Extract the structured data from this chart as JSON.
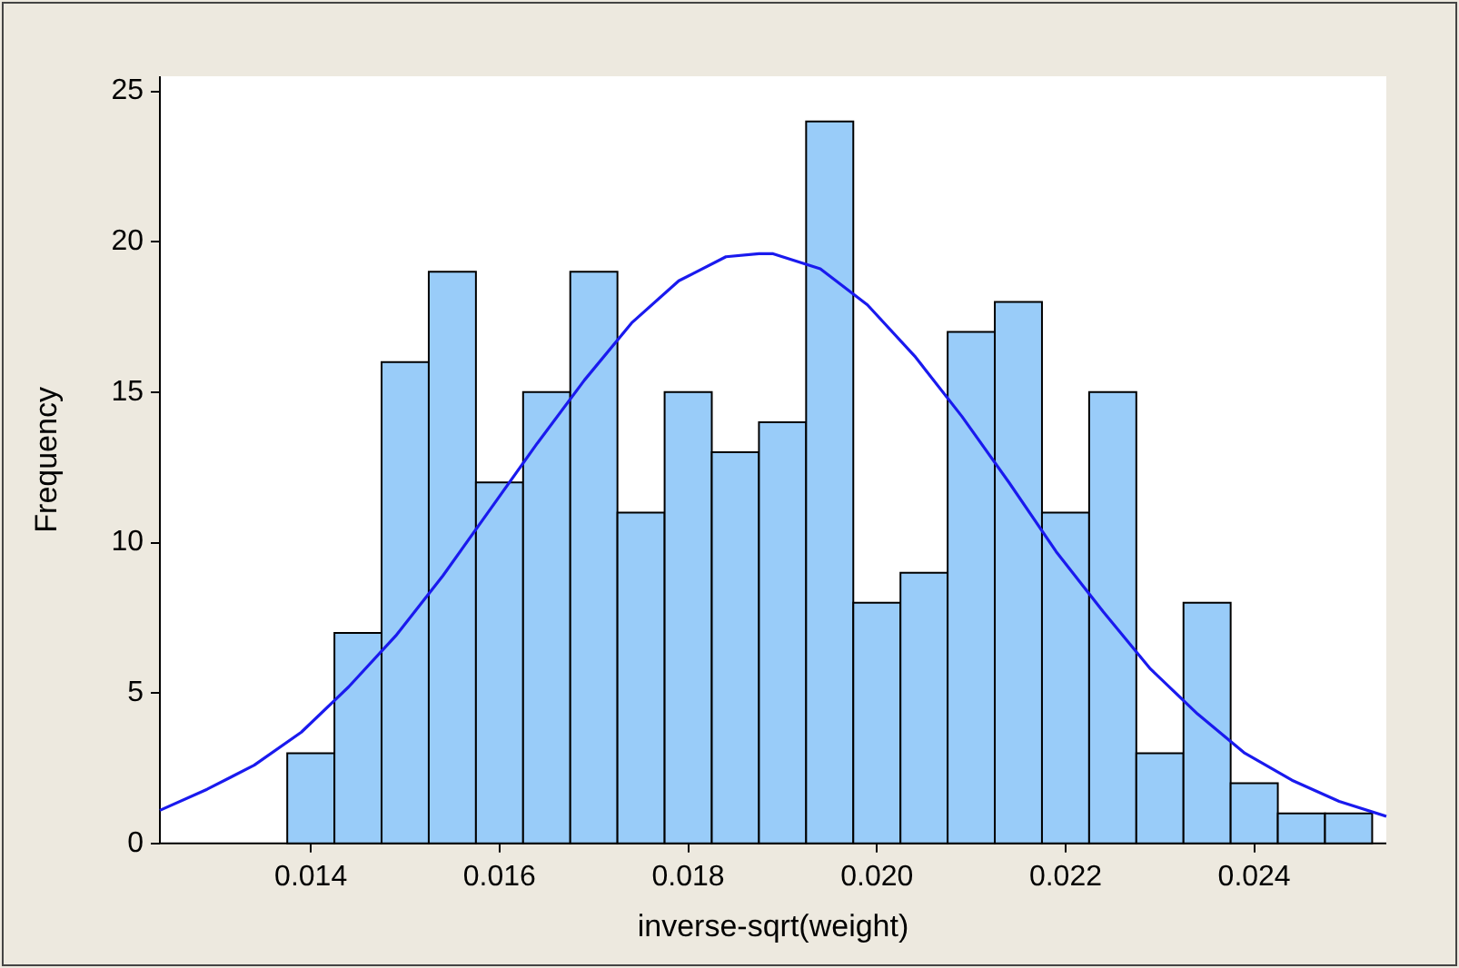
{
  "chart_data": {
    "type": "histogram",
    "xlabel": "inverse-sqrt(weight)",
    "ylabel": "Frequency",
    "bins": [
      0.01375,
      0.01425,
      0.01475,
      0.01525,
      0.01575,
      0.01625,
      0.01675,
      0.01725,
      0.01775,
      0.01825,
      0.01875,
      0.01925,
      0.01975,
      0.02025,
      0.02075,
      0.02125,
      0.02175,
      0.02225,
      0.02275,
      0.02325,
      0.02375,
      0.02425,
      0.02475,
      0.02525
    ],
    "values": [
      3,
      7,
      16,
      19,
      12,
      15,
      19,
      11,
      15,
      13,
      14,
      24,
      8,
      9,
      17,
      18,
      11,
      15,
      3,
      8,
      2,
      1,
      1
    ],
    "color": "#99ccf9",
    "series": [
      {
        "type": "line",
        "color": "#1a1aee",
        "x": [
          0.0124,
          0.0129,
          0.0134,
          0.0139,
          0.0144,
          0.0149,
          0.0154,
          0.0159,
          0.0164,
          0.0169,
          0.0174,
          0.0179,
          0.0184,
          0.01875,
          0.0189,
          0.0194,
          0.0199,
          0.0204,
          0.0209,
          0.0214,
          0.0219,
          0.0224,
          0.0229,
          0.0234,
          0.0239,
          0.0244,
          0.0249,
          0.0254
        ],
        "values": [
          1.1,
          1.8,
          2.6,
          3.7,
          5.2,
          6.9,
          8.9,
          11.1,
          13.3,
          15.4,
          17.3,
          18.7,
          19.5,
          19.6,
          19.6,
          19.1,
          17.9,
          16.2,
          14.2,
          12.0,
          9.7,
          7.7,
          5.8,
          4.3,
          3.0,
          2.1,
          1.4,
          0.9
        ]
      }
    ],
    "xlim": [
      0.0124,
      0.0254
    ],
    "xticks": [
      {
        "value": 0.014,
        "label": "0.014"
      },
      {
        "value": 0.016,
        "label": "0.016"
      },
      {
        "value": 0.018,
        "label": "0.018"
      },
      {
        "value": 0.02,
        "label": "0.020"
      },
      {
        "value": 0.022,
        "label": "0.022"
      },
      {
        "value": 0.024,
        "label": "0.024"
      }
    ],
    "ylim": [
      0,
      25.5
    ],
    "yticks": [
      0,
      5,
      10,
      15,
      20,
      25
    ],
    "grid": false,
    "legend": false,
    "marker": "none",
    "line_style": "solid"
  }
}
